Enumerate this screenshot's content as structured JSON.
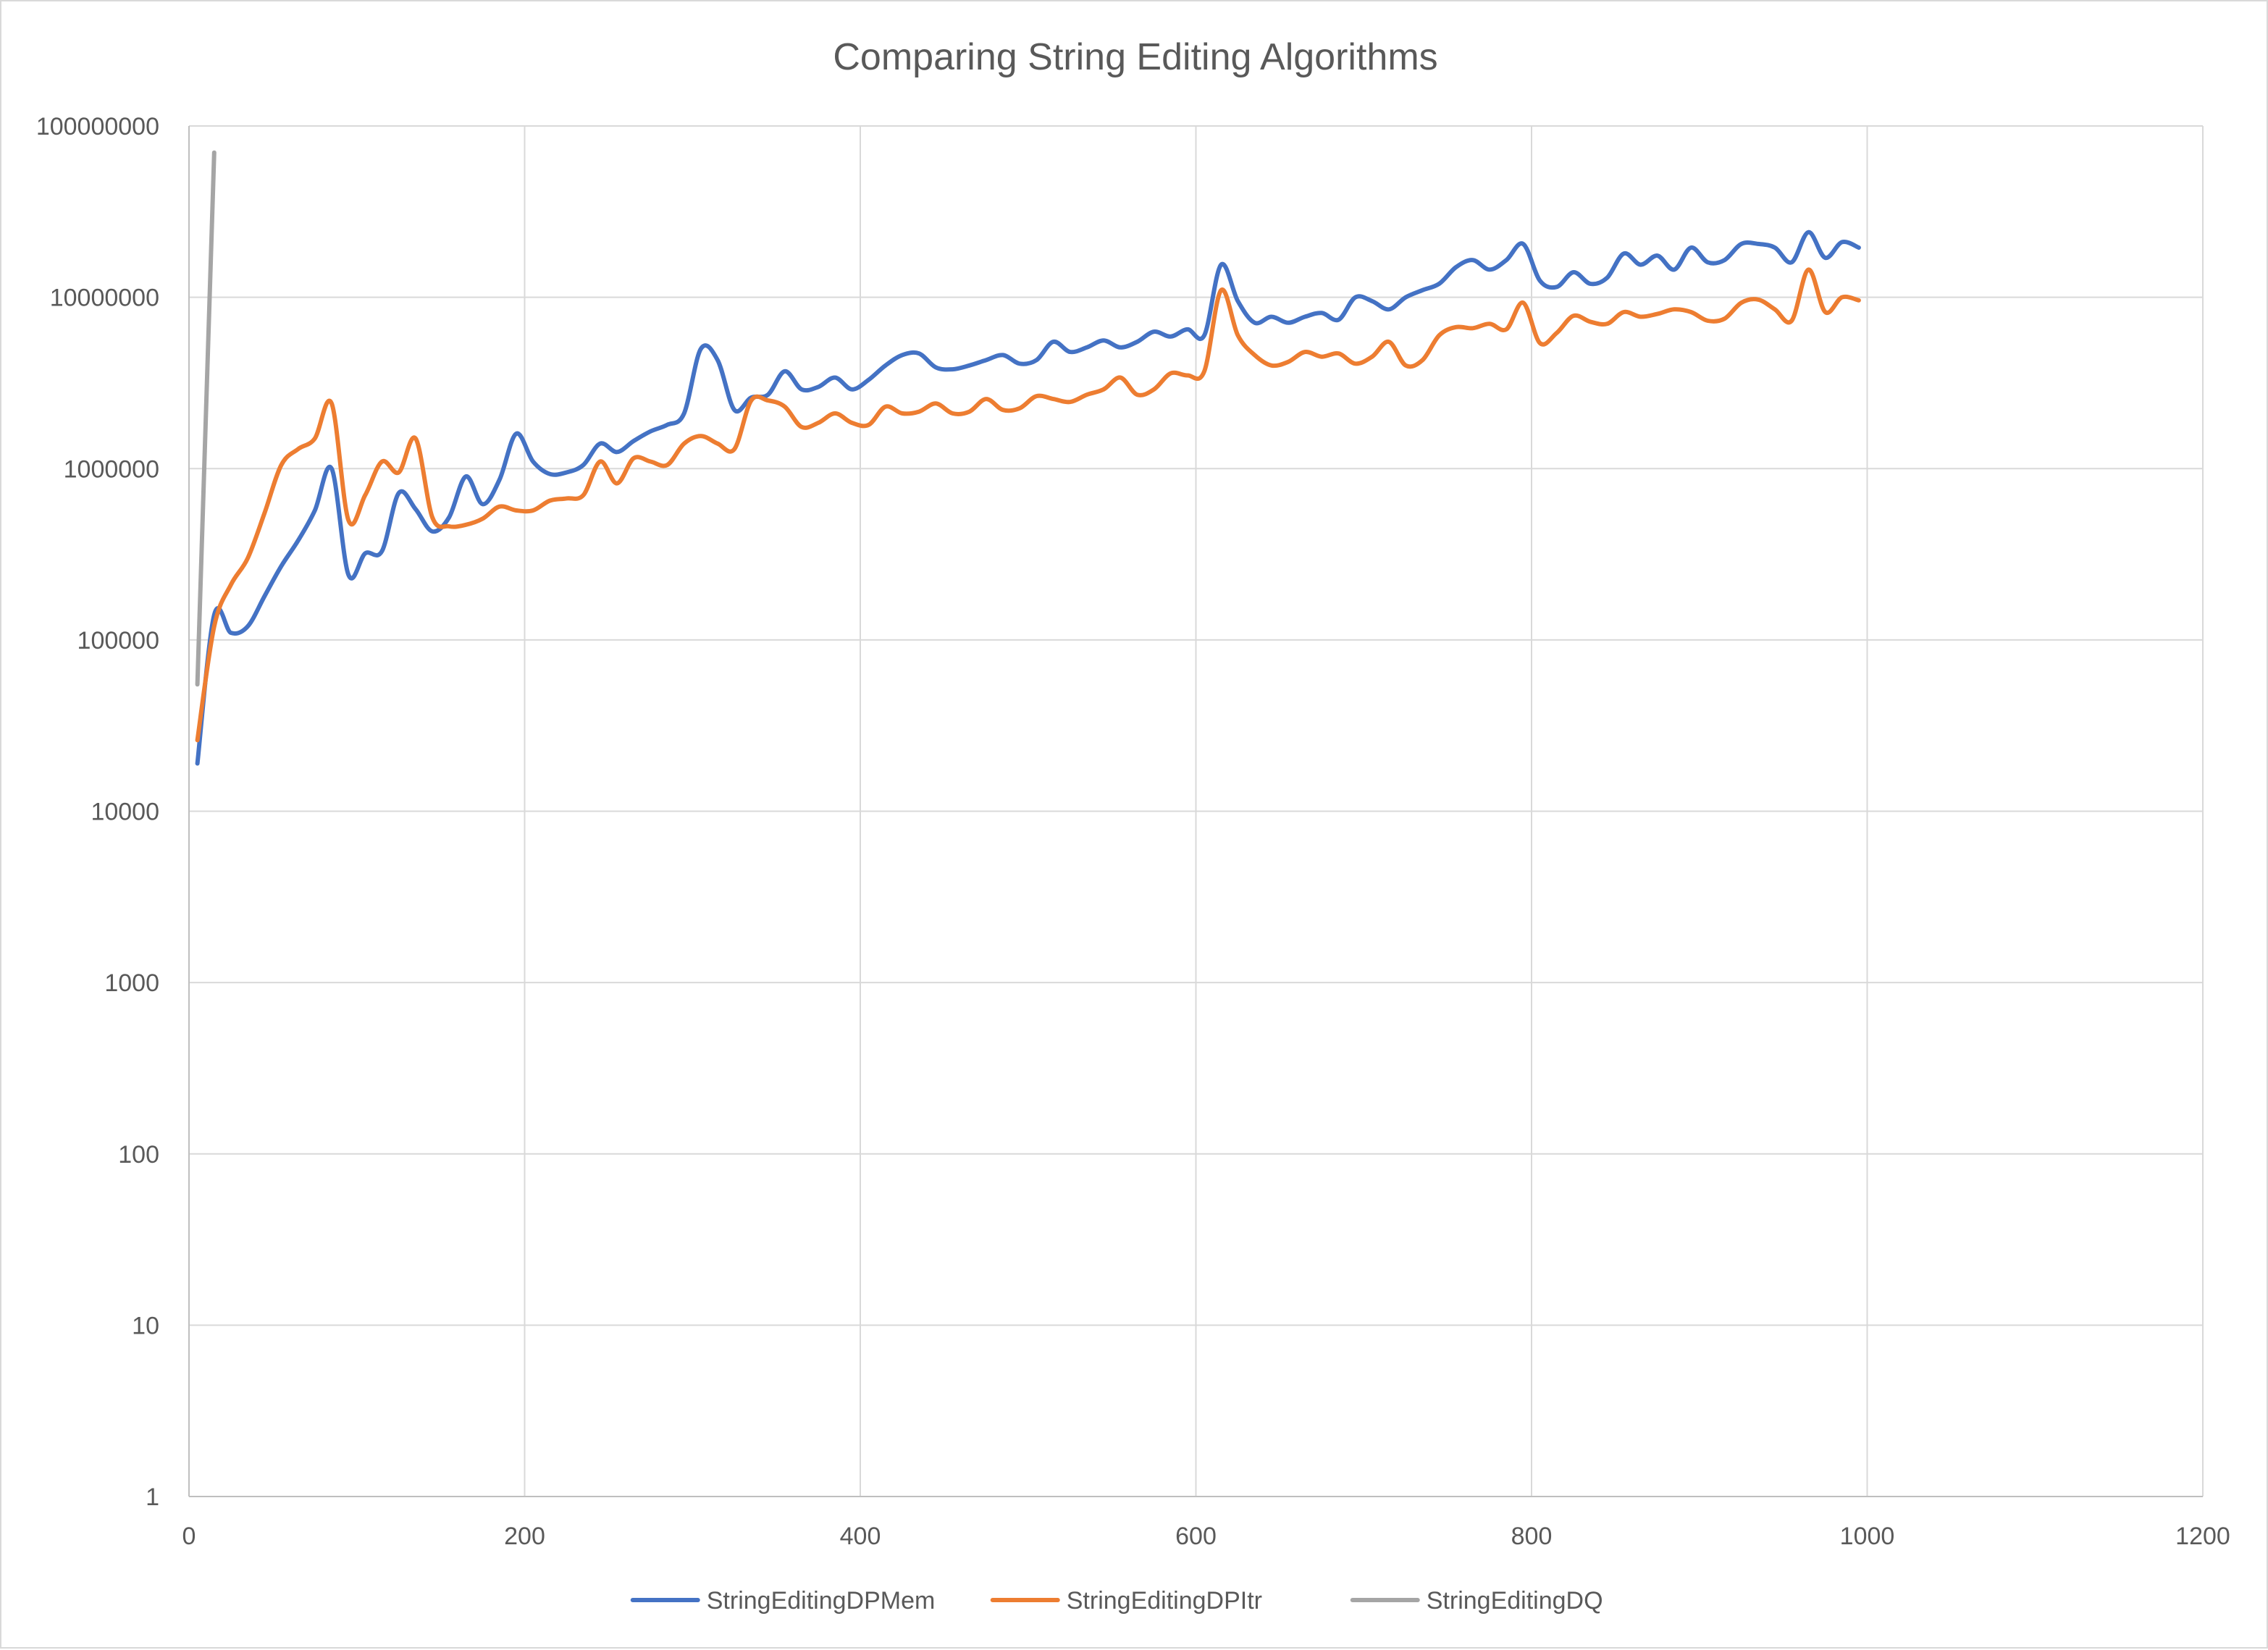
{
  "chart_data": {
    "type": "line",
    "title": "Comparing String Editing Algorithms",
    "xlabel": "",
    "ylabel": "",
    "y_scale": "log",
    "xlim": [
      0,
      1200
    ],
    "ylim": [
      1,
      100000000
    ],
    "x_ticks": [
      "0",
      "200",
      "400",
      "600",
      "800",
      "1000",
      "1200"
    ],
    "y_ticks": [
      "1",
      "10",
      "100",
      "1000",
      "10000",
      "100000",
      "1000000",
      "10000000",
      "100000000"
    ],
    "grid": true,
    "legend_position": "bottom",
    "series": [
      {
        "name": "StringEditingDPMem",
        "color": "#4472C4",
        "x": [
          5,
          15,
          25,
          35,
          45,
          55,
          65,
          75,
          85,
          95,
          105,
          115,
          125,
          135,
          145,
          155,
          165,
          175,
          185,
          195,
          205,
          215,
          225,
          235,
          245,
          255,
          265,
          275,
          285,
          295,
          305,
          315,
          325,
          335,
          345,
          355,
          365,
          375,
          385,
          395,
          405,
          415,
          425,
          435,
          445,
          455,
          465,
          475,
          485,
          495,
          505,
          515,
          525,
          535,
          545,
          555,
          565,
          575,
          585,
          595,
          605,
          615,
          625,
          635,
          645,
          655,
          665,
          675,
          685,
          695,
          705,
          715,
          725,
          735,
          745,
          755,
          765,
          775,
          785,
          795,
          805,
          815,
          825,
          835,
          845,
          855,
          865,
          875,
          885,
          895,
          905,
          915,
          925,
          935,
          945,
          955,
          965,
          975,
          985,
          995
        ],
        "y": [
          19000,
          140000,
          110000,
          120000,
          180000,
          270000,
          380000,
          570000,
          1000000,
          240000,
          320000,
          330000,
          720000,
          580000,
          430000,
          520000,
          900000,
          620000,
          860000,
          1600000,
          1100000,
          930000,
          950000,
          1050000,
          1400000,
          1250000,
          1450000,
          1650000,
          1800000,
          2100000,
          5000000,
          4300000,
          2200000,
          2600000,
          2700000,
          3700000,
          2900000,
          3000000,
          3400000,
          2900000,
          3300000,
          4000000,
          4600000,
          4700000,
          3900000,
          3800000,
          4000000,
          4300000,
          4600000,
          4100000,
          4300000,
          5500000,
          4800000,
          5100000,
          5600000,
          5100000,
          5500000,
          6300000,
          5900000,
          6500000,
          6000000,
          15500000,
          9500000,
          7100000,
          7700000,
          7100000,
          7700000,
          8100000,
          7400000,
          10000000,
          9500000,
          8500000,
          10000000,
          11000000,
          12000000,
          15000000,
          16500000,
          14500000,
          16500000,
          20500000,
          12500000,
          11500000,
          14000000,
          12000000,
          13000000,
          18000000,
          15500000,
          17500000,
          14500000,
          19500000,
          16000000,
          16500000,
          20500000,
          20500000,
          19500000,
          16000000,
          24000000,
          17000000,
          21000000,
          19500000
        ]
      },
      {
        "name": "StringEditingDPItr",
        "color": "#ED7D31",
        "x": [
          5,
          15,
          25,
          35,
          45,
          55,
          65,
          75,
          85,
          95,
          105,
          115,
          125,
          135,
          145,
          155,
          165,
          175,
          185,
          195,
          205,
          215,
          225,
          235,
          245,
          255,
          265,
          275,
          285,
          295,
          305,
          315,
          325,
          335,
          345,
          355,
          365,
          375,
          385,
          395,
          405,
          415,
          425,
          435,
          445,
          455,
          465,
          475,
          485,
          495,
          505,
          515,
          525,
          535,
          545,
          555,
          565,
          575,
          585,
          595,
          605,
          615,
          625,
          635,
          645,
          655,
          665,
          675,
          685,
          695,
          705,
          715,
          725,
          735,
          745,
          755,
          765,
          775,
          785,
          795,
          805,
          815,
          825,
          835,
          845,
          855,
          865,
          875,
          885,
          895,
          905,
          915,
          925,
          935,
          945,
          955,
          965,
          975,
          985,
          995
        ],
        "y": [
          26000,
          120000,
          210000,
          300000,
          550000,
          1050000,
          1300000,
          1500000,
          2400000,
          500000,
          700000,
          1100000,
          950000,
          1500000,
          520000,
          460000,
          470000,
          510000,
          600000,
          570000,
          570000,
          650000,
          670000,
          700000,
          1100000,
          820000,
          1150000,
          1100000,
          1050000,
          1400000,
          1550000,
          1400000,
          1300000,
          2500000,
          2500000,
          2300000,
          1750000,
          1850000,
          2100000,
          1850000,
          1800000,
          2300000,
          2100000,
          2150000,
          2400000,
          2100000,
          2150000,
          2550000,
          2200000,
          2250000,
          2650000,
          2550000,
          2450000,
          2700000,
          2900000,
          3400000,
          2700000,
          2900000,
          3600000,
          3500000,
          3700000,
          11000000,
          6000000,
          4600000,
          4000000,
          4200000,
          4800000,
          4500000,
          4700000,
          4100000,
          4500000,
          5500000,
          4000000,
          4300000,
          6000000,
          6700000,
          6600000,
          7000000,
          6500000,
          9300000,
          5400000,
          6200000,
          7800000,
          7200000,
          7000000,
          8200000,
          7700000,
          8000000,
          8500000,
          8200000,
          7300000,
          7500000,
          9300000,
          9700000,
          8500000,
          7300000,
          14500000,
          8200000,
          10000000,
          9600000
        ]
      },
      {
        "name": "StringEditingDQ",
        "color": "#A5A5A5",
        "x": [
          5,
          15
        ],
        "y": [
          55000,
          70000000
        ]
      }
    ]
  }
}
